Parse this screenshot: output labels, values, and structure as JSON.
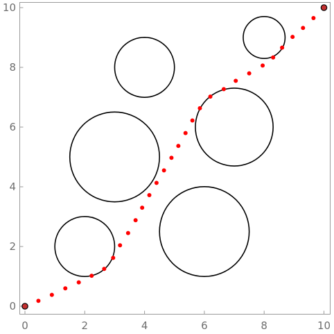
{
  "chart_data": {
    "type": "scatter",
    "xlim": [
      0,
      10
    ],
    "ylim": [
      0,
      10
    ],
    "x_ticks": [
      0,
      2,
      4,
      6,
      8,
      10
    ],
    "y_ticks": [
      0,
      2,
      4,
      6,
      8,
      10
    ],
    "grid": false,
    "circles": [
      {
        "cx": 2,
        "cy": 2,
        "r": 1
      },
      {
        "cx": 3,
        "cy": 5,
        "r": 1.5
      },
      {
        "cx": 4,
        "cy": 8,
        "r": 1
      },
      {
        "cx": 6,
        "cy": 2.5,
        "r": 1.5
      },
      {
        "cx": 7,
        "cy": 6,
        "r": 1.3
      },
      {
        "cx": 8,
        "cy": 9,
        "r": 0.7
      }
    ],
    "path_points": [
      [
        0.45,
        0.18
      ],
      [
        0.9,
        0.38
      ],
      [
        1.35,
        0.6
      ],
      [
        1.8,
        0.8
      ],
      [
        2.23,
        1.02
      ],
      [
        2.65,
        1.25
      ],
      [
        2.95,
        1.62
      ],
      [
        3.18,
        2.04
      ],
      [
        3.45,
        2.45
      ],
      [
        3.7,
        2.88
      ],
      [
        3.92,
        3.3
      ],
      [
        4.16,
        3.72
      ],
      [
        4.4,
        4.13
      ],
      [
        4.65,
        4.55
      ],
      [
        4.9,
        4.97
      ],
      [
        5.13,
        5.37
      ],
      [
        5.37,
        5.8
      ],
      [
        5.6,
        6.22
      ],
      [
        5.85,
        6.63
      ],
      [
        6.2,
        7.02
      ],
      [
        6.65,
        7.27
      ],
      [
        7.05,
        7.55
      ],
      [
        7.5,
        7.8
      ],
      [
        7.95,
        8.06
      ],
      [
        8.3,
        8.33
      ],
      [
        8.6,
        8.66
      ],
      [
        8.95,
        9.02
      ],
      [
        9.3,
        9.32
      ],
      [
        9.65,
        9.65
      ]
    ],
    "endpoints": [
      [
        0,
        0
      ],
      [
        10,
        10
      ]
    ],
    "colors": {
      "path": "#ff0000",
      "endpoint": "#c43030",
      "circle": "#000000"
    }
  }
}
